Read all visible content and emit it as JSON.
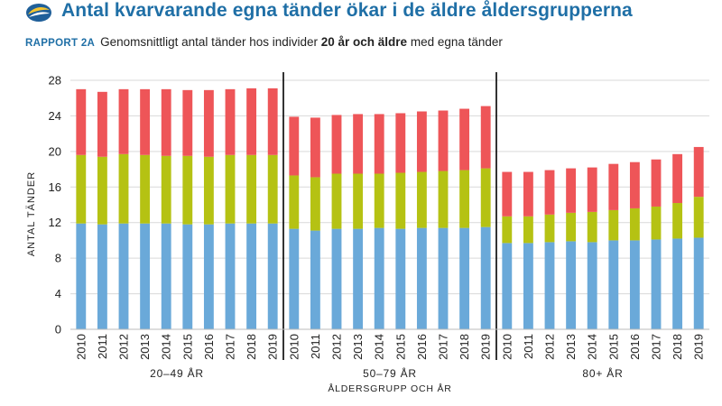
{
  "header": {
    "title": "Antal kvarvarande egna tänder ökar i de äldre åldersgrupperna",
    "report_tag": "RAPPORT 2A",
    "subtitle_pre": "Genomsnittligt antal tänder hos individer ",
    "subtitle_bold": "20 år och äldre",
    "subtitle_post": " med egna tänder"
  },
  "colors": {
    "title": "#1f6fa6",
    "bottom": "#6aa9d9",
    "middle": "#b5c213",
    "top": "#ee5558",
    "divider": "#000000",
    "grid": "#d9d9d9"
  },
  "chart_data": {
    "type": "bar",
    "stacked": true,
    "ylabel": "ANTAL TÄNDER",
    "xlabel": "ÅLDERSGRUPP OCH ÅR",
    "ylim": [
      0,
      28
    ],
    "yticks": [
      0,
      4,
      8,
      12,
      16,
      20,
      24,
      28
    ],
    "grid": true,
    "groups": [
      {
        "label": "20–49 ÅR",
        "categories": [
          "2010",
          "2011",
          "2012",
          "2013",
          "2014",
          "2015",
          "2016",
          "2017",
          "2018",
          "2019"
        ],
        "segments": [
          [
            11.9,
            11.8,
            11.9,
            11.9,
            11.9,
            11.8,
            11.8,
            11.9,
            11.9,
            11.9
          ],
          [
            7.7,
            7.6,
            7.8,
            7.7,
            7.6,
            7.7,
            7.6,
            7.7,
            7.7,
            7.7
          ],
          [
            7.4,
            7.3,
            7.3,
            7.4,
            7.5,
            7.4,
            7.5,
            7.4,
            7.5,
            7.5
          ]
        ]
      },
      {
        "label": "50–79 ÅR",
        "categories": [
          "2010",
          "2011",
          "2012",
          "2013",
          "2014",
          "2015",
          "2016",
          "2017",
          "2018",
          "2019"
        ],
        "segments": [
          [
            11.3,
            11.1,
            11.3,
            11.3,
            11.4,
            11.3,
            11.4,
            11.4,
            11.4,
            11.5
          ],
          [
            6.0,
            6.0,
            6.2,
            6.2,
            6.1,
            6.3,
            6.3,
            6.4,
            6.5,
            6.6
          ],
          [
            6.6,
            6.7,
            6.6,
            6.7,
            6.7,
            6.7,
            6.8,
            6.8,
            6.9,
            7.0
          ]
        ]
      },
      {
        "label": "80+ ÅR",
        "categories": [
          "2010",
          "2011",
          "2012",
          "2013",
          "2014",
          "2015",
          "2016",
          "2017",
          "2018",
          "2019"
        ],
        "segments": [
          [
            9.7,
            9.7,
            9.8,
            9.9,
            9.8,
            10.0,
            10.0,
            10.1,
            10.2,
            10.3
          ],
          [
            3.0,
            3.0,
            3.1,
            3.2,
            3.4,
            3.4,
            3.6,
            3.7,
            4.0,
            4.6
          ],
          [
            5.0,
            5.0,
            5.0,
            5.0,
            5.0,
            5.2,
            5.2,
            5.3,
            5.5,
            5.6
          ]
        ]
      }
    ]
  }
}
